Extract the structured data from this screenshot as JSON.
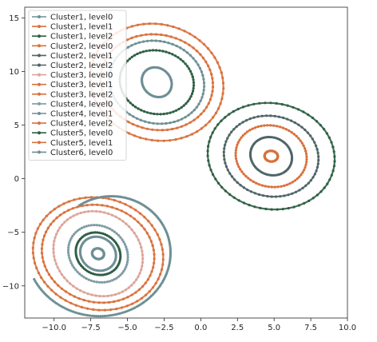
{
  "chart_data": {
    "type": "line",
    "title": "",
    "xlabel": "",
    "ylabel": "",
    "xlim": [
      -12,
      10
    ],
    "ylim": [
      -13,
      16
    ],
    "xticks": [
      -10.0,
      -7.5,
      -5.0,
      -2.5,
      0.0,
      2.5,
      5.0,
      7.5,
      10.0
    ],
    "xtick_labels": [
      "−10.0",
      "−7.5",
      "−5.0",
      "−2.5",
      "0.0",
      "2.5",
      "5.0",
      "7.5",
      "10.0"
    ],
    "yticks": [
      15,
      10,
      5,
      0,
      -5,
      -10
    ],
    "ytick_labels": [
      "15",
      "10",
      "5",
      "0",
      "−5",
      "−10"
    ],
    "grid": false,
    "legend_position": "top-left",
    "marker": "dot",
    "series": [
      {
        "name": "Cluster1, level0",
        "color": "#6d8f94",
        "center": [
          -3,
          9
        ],
        "radii": [
          1.0,
          1.4
        ],
        "shape": "ellipse"
      },
      {
        "name": "Cluster1, level1",
        "color": "#d9713c",
        "center": [
          -3,
          9
        ],
        "radii": [
          4.5,
          5.5
        ],
        "shape": "ellipse"
      },
      {
        "name": "Cluster1, level2",
        "color": "#2f5f45",
        "center": [
          -3,
          9
        ],
        "radii": [
          2.5,
          3.0
        ],
        "shape": "ellipse"
      },
      {
        "name": "Cluster2, level0",
        "color": "#d9713c",
        "center": [
          4.8,
          2.1
        ],
        "radii": [
          0.45,
          0.5
        ],
        "shape": "ellipse"
      },
      {
        "name": "Cluster2, level1",
        "color": "#4f6466",
        "center": [
          4.8,
          2.1
        ],
        "radii": [
          3.2,
          3.8
        ],
        "shape": "ellipse"
      },
      {
        "name": "Cluster2, level2",
        "color": "#4f6466",
        "center": [
          4.8,
          2.1
        ],
        "radii": [
          1.4,
          1.8
        ],
        "shape": "ellipse"
      },
      {
        "name": "Cluster3, level0",
        "color": "#dba59a",
        "center": [
          -7,
          -7
        ],
        "radii": [
          3.0,
          4.0
        ],
        "shape": "ellipse"
      },
      {
        "name": "Cluster3, level1",
        "color": "#d9713c",
        "center": [
          4.8,
          2.1
        ],
        "radii": [
          2.4,
          2.9
        ],
        "shape": "ellipse"
      },
      {
        "name": "Cluster3, level2",
        "color": "#d9713c",
        "center": [
          -7,
          -7
        ],
        "radii": [
          4.4,
          5.3
        ],
        "shape": "ellipse"
      },
      {
        "name": "Cluster4, level0",
        "color": "#7f9ca3",
        "center": [
          -7,
          -7
        ],
        "radii": [
          2.0,
          2.7
        ],
        "shape": "ellipse"
      },
      {
        "name": "Cluster4, level1",
        "color": "#6d8f94",
        "center": [
          -7,
          -7
        ],
        "radii": [
          0.4,
          0.5
        ],
        "shape": "ellipse"
      },
      {
        "name": "Cluster4, level2",
        "color": "#d9713c",
        "center": [
          -7,
          -7
        ],
        "radii": [
          3.8,
          4.6
        ],
        "shape": "ellipse"
      },
      {
        "name": "Cluster5, level0",
        "color": "#2f5f45",
        "center": [
          4.8,
          2.1
        ],
        "radii": [
          4.3,
          5.0
        ],
        "shape": "ellipse"
      },
      {
        "name": "Cluster5, level1",
        "color": "#d9713c",
        "center": [
          -3,
          9
        ],
        "radii": [
          3.8,
          4.5
        ],
        "shape": "ellipse"
      },
      {
        "name": "Cluster6, level0",
        "color": "#6d8f94",
        "center": [
          -7,
          -7
        ],
        "radii": [
          1.2,
          1.6
        ],
        "shape": "ellipse"
      },
      {
        "name": "",
        "color": "#6d8f94",
        "center": [
          -3,
          9
        ],
        "radii": [
          3.2,
          3.9
        ],
        "shape": "ellipse",
        "legend": false
      },
      {
        "name": "",
        "color": "#2f5f45",
        "center": [
          -7,
          -7
        ],
        "radii": [
          1.5,
          2.0
        ],
        "shape": "ellipse",
        "legend": false
      },
      {
        "name": "",
        "color": "#6d8f94",
        "center": [
          -7,
          -7
        ],
        "radii": [
          5.0,
          6.0
        ],
        "shape": "spiral",
        "legend": false
      }
    ]
  }
}
